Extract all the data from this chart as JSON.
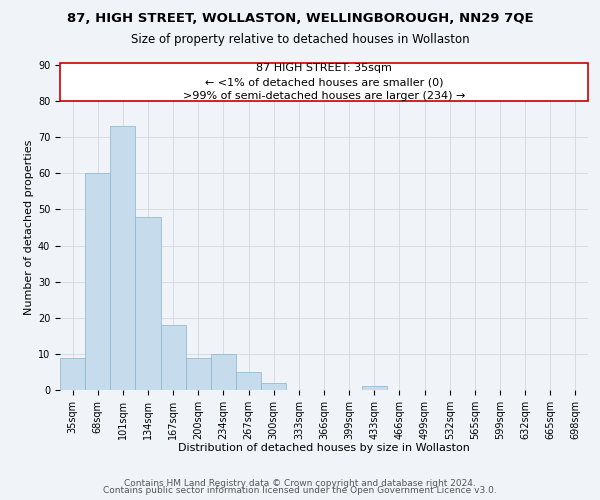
{
  "title": "87, HIGH STREET, WOLLASTON, WELLINGBOROUGH, NN29 7QE",
  "subtitle": "Size of property relative to detached houses in Wollaston",
  "xlabel": "Distribution of detached houses by size in Wollaston",
  "ylabel": "Number of detached properties",
  "bar_color": "#c6dcec",
  "bar_edge_color": "#8ab4cc",
  "categories": [
    "35sqm",
    "68sqm",
    "101sqm",
    "134sqm",
    "167sqm",
    "200sqm",
    "234sqm",
    "267sqm",
    "300sqm",
    "333sqm",
    "366sqm",
    "399sqm",
    "433sqm",
    "466sqm",
    "499sqm",
    "532sqm",
    "565sqm",
    "599sqm",
    "632sqm",
    "665sqm",
    "698sqm"
  ],
  "values": [
    9,
    60,
    73,
    48,
    18,
    9,
    10,
    5,
    2,
    0,
    0,
    0,
    1,
    0,
    0,
    0,
    0,
    0,
    0,
    0,
    0
  ],
  "ylim": [
    0,
    90
  ],
  "yticks": [
    0,
    10,
    20,
    30,
    40,
    50,
    60,
    70,
    80,
    90
  ],
  "annotation_line1": "87 HIGH STREET: 35sqm",
  "annotation_line2": "← <1% of detached houses are smaller (0)",
  "annotation_line3": ">99% of semi-detached houses are larger (234) →",
  "annotation_box_color": "white",
  "annotation_box_edge_color": "#cc0000",
  "footer_line1": "Contains HM Land Registry data © Crown copyright and database right 2024.",
  "footer_line2": "Contains public sector information licensed under the Open Government Licence v3.0.",
  "background_color": "#f0f4f8",
  "grid_color": "#d0d8e0",
  "title_fontsize": 9.5,
  "subtitle_fontsize": 8.5,
  "axis_label_fontsize": 8,
  "tick_fontsize": 7,
  "annotation_fontsize": 8,
  "footer_fontsize": 6.5
}
